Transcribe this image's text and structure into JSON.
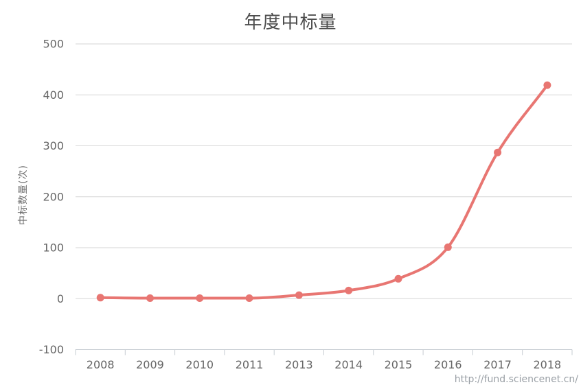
{
  "chart": {
    "title": "年度中标量",
    "y_axis_title": "中标数量(次)",
    "watermark": "http://fund.sciencenet.cn/"
  },
  "chart_data": {
    "type": "line",
    "title": "年度中标量",
    "categories": [
      "2008",
      "2009",
      "2010",
      "2011",
      "2013",
      "2014",
      "2015",
      "2016",
      "2017",
      "2018"
    ],
    "values": [
      2,
      1,
      1,
      1,
      7,
      16,
      39,
      101,
      287,
      419
    ],
    "xlabel": "",
    "ylabel": "中标数量(次)",
    "ylim": [
      -100,
      500
    ],
    "ytick_step": 100,
    "grid": true,
    "legend_position": "none",
    "smooth": true,
    "marker": "circle",
    "annotations": [
      "http://fund.sciencenet.cn/"
    ],
    "colors": {
      "line": "#e87672",
      "marker": "#e87672",
      "grid": "#d6d6d6",
      "axis": "#c6ccd2",
      "tick_label": "#666666",
      "title": "#4d4d4d",
      "watermark": "#9aa0a6"
    }
  }
}
